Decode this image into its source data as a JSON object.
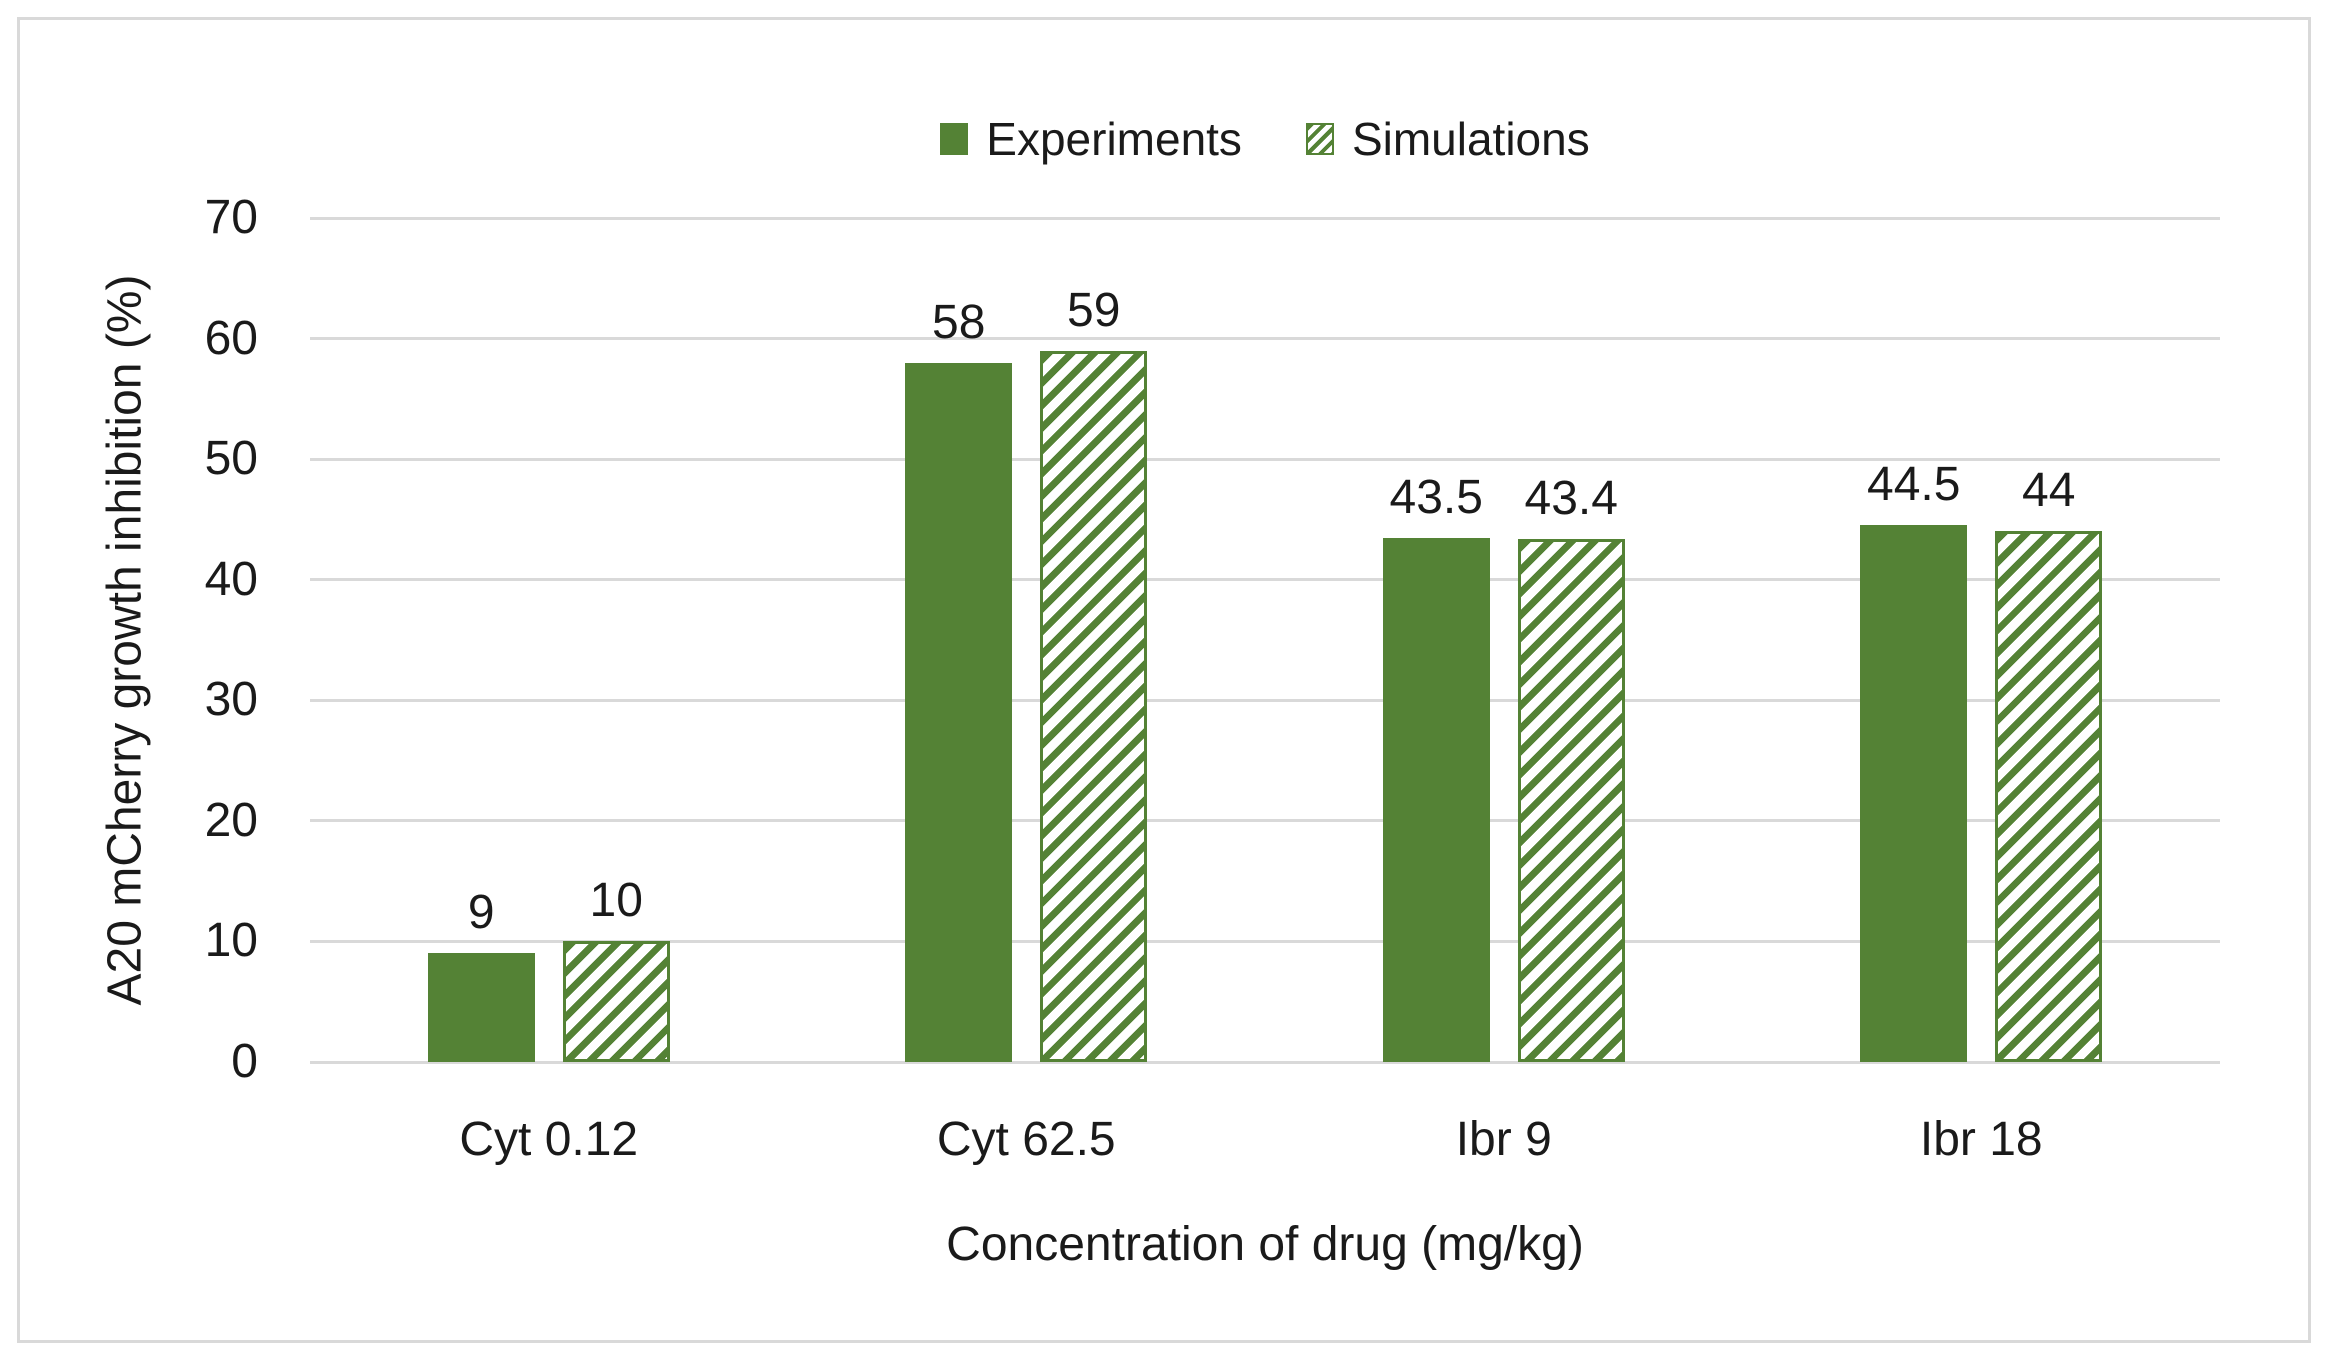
{
  "chart_data": {
    "type": "bar",
    "categories": [
      "Cyt 0.12",
      "Cyt 62.5",
      "Ibr 9",
      "Ibr 18"
    ],
    "series": [
      {
        "name": "Experiments",
        "style": "solid",
        "values": [
          9,
          58,
          43.5,
          44.5
        ]
      },
      {
        "name": "Simulations",
        "style": "hatched",
        "values": [
          10,
          59,
          43.4,
          44
        ]
      }
    ],
    "title": "",
    "xlabel": "Concentration of drug (mg/kg)",
    "ylabel": "A20 mCherry growth inhibition (%)",
    "ylim": [
      0,
      70
    ],
    "ytick_interval": 10,
    "yticks": [
      "0",
      "10",
      "20",
      "30",
      "40",
      "50",
      "60",
      "70"
    ],
    "grid": true,
    "legend_position": "top-center",
    "data_labels_shown": true,
    "colors": {
      "bar_green": "#548235",
      "gridline": "#D9D9D9",
      "frame_border": "#D9D9D9",
      "text": "#1A1A1A",
      "background": "#FFFFFF"
    }
  }
}
